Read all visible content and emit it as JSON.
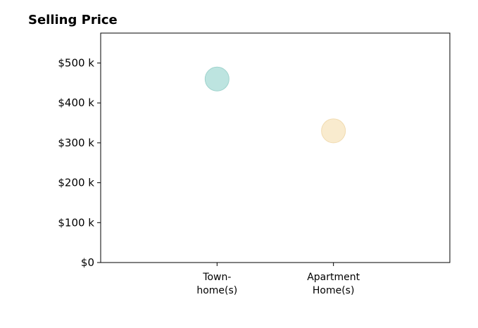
{
  "chart_data": {
    "type": "scatter",
    "title": "Selling Price",
    "xlabel": "",
    "ylabel": "",
    "categories": [
      {
        "label_lines": [
          "Town-",
          "home(s)"
        ],
        "value": 460000,
        "color": "#b2dfdb"
      },
      {
        "label_lines": [
          "Apartment",
          "Home(s)"
        ],
        "value": 330000,
        "color": "#f8e8c6"
      }
    ],
    "ylim": [
      0,
      575000
    ],
    "y_ticks": [
      {
        "value": 0,
        "label": "$0"
      },
      {
        "value": 100000,
        "label": "$100 k"
      },
      {
        "value": 200000,
        "label": "$200 k"
      },
      {
        "value": 300000,
        "label": "$300 k"
      },
      {
        "value": 400000,
        "label": "$400 k"
      },
      {
        "value": 500000,
        "label": "$500 k"
      }
    ],
    "grid": false,
    "legend": "none",
    "colors": {
      "marker_edge_townhome": "#9fd3cd",
      "marker_edge_apartment": "#f1dbb0",
      "frame": "#000000"
    }
  }
}
